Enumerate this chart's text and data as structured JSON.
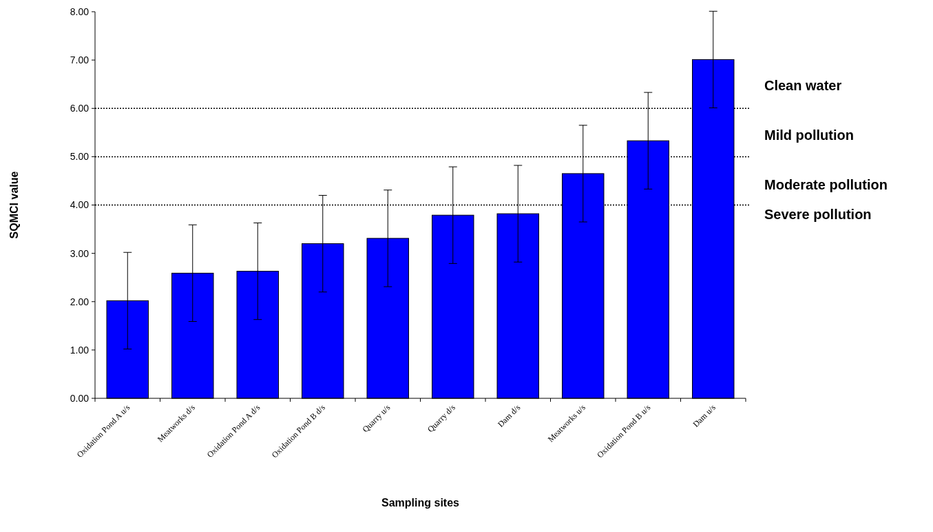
{
  "chart_data": {
    "type": "bar",
    "xlabel": "Sampling sites",
    "ylabel": "SQMCI value",
    "categories": [
      "Oxidation Pond A u/s",
      "Meatworks d/s",
      "Oxidation Pond A d/s",
      "Oxidation Pond B d/s",
      "Quarry u/s",
      "Quarry d/s",
      "Dam d/s",
      "Meatworks u/s",
      "Oxidation Pond B u/s",
      "Dam u/s"
    ],
    "values": [
      2.02,
      2.59,
      2.63,
      3.2,
      3.31,
      3.79,
      3.82,
      4.65,
      5.33,
      7.01
    ],
    "errors": [
      1,
      1,
      1,
      1,
      1,
      1,
      1,
      1,
      1,
      1
    ],
    "color": "#0000ff",
    "ylim": [
      0,
      8
    ],
    "yticks": [
      {
        "value": 0,
        "label": "0.00"
      },
      {
        "value": 1,
        "label": "1.00"
      },
      {
        "value": 2,
        "label": "2.00"
      },
      {
        "value": 3,
        "label": "3.00"
      },
      {
        "value": 4,
        "label": "4.00"
      },
      {
        "value": 5,
        "label": "5.00"
      },
      {
        "value": 6,
        "label": "6.00"
      },
      {
        "value": 7,
        "label": "7.00"
      },
      {
        "value": 8,
        "label": "8.00"
      }
    ],
    "ref_lines": [
      {
        "axis": "y",
        "value": 4,
        "line_style": "dotted"
      },
      {
        "axis": "y",
        "value": 5,
        "line_style": "dotted"
      },
      {
        "axis": "y",
        "value": 6,
        "line_style": "dotted"
      }
    ],
    "annotations": [
      "Clean water",
      "Mild pollution",
      "Moderate pollution",
      "Severe pollution"
    ],
    "grid": false
  }
}
